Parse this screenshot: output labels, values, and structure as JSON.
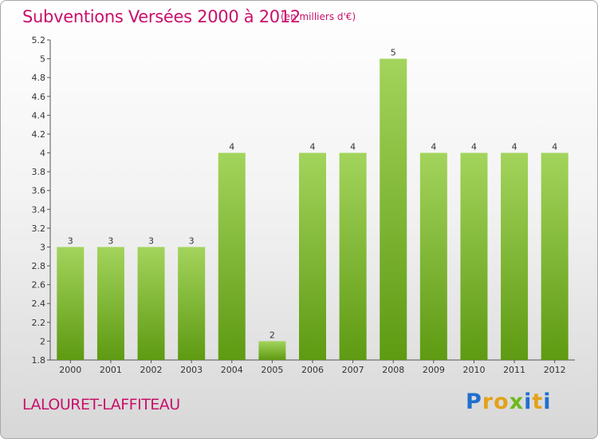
{
  "title": "Subventions Versées 2000 à 2012",
  "unit_note": "(en milliers d'€)",
  "place_name": "LALOURET-LAFFITEAU",
  "logo": {
    "text": "Proxiti",
    "letters": [
      "P",
      "r",
      "o",
      "x",
      "i",
      "t",
      "i"
    ],
    "colors": [
      "#1f6fd0",
      "#e3a21a",
      "#e3a21a",
      "#6fb81e",
      "#1f6fd0",
      "#e3a21a",
      "#1f6fd0"
    ]
  },
  "colors": {
    "accent": "#c8106b",
    "bar_top": "#a3d45c",
    "bar_bottom": "#5e9a12"
  },
  "chart_data": {
    "type": "bar",
    "categories": [
      "2000",
      "2001",
      "2002",
      "2003",
      "2004",
      "2005",
      "2006",
      "2007",
      "2008",
      "2009",
      "2010",
      "2011",
      "2012"
    ],
    "values": [
      3,
      3,
      3,
      3,
      4,
      2,
      4,
      4,
      5,
      4,
      4,
      4,
      4
    ],
    "data_labels": [
      "3",
      "3",
      "3",
      "3",
      "4",
      "2",
      "4",
      "4",
      "5",
      "4",
      "4",
      "4",
      "4"
    ],
    "ylim": [
      1.8,
      5.2
    ],
    "yticks": [
      1.8,
      2,
      2.2,
      2.4,
      2.6,
      2.8,
      3,
      3.2,
      3.4,
      3.6,
      3.8,
      4,
      4.2,
      4.4,
      4.6,
      4.8,
      5,
      5.2
    ],
    "ytick_labels": [
      "1.8",
      "2",
      "2.2",
      "2.4",
      "2.6",
      "2.8",
      "3",
      "3.2",
      "3.4",
      "3.6",
      "3.8",
      "4",
      "4.2",
      "4.4",
      "4.6",
      "4.8",
      "5",
      "5.2"
    ],
    "grid": false,
    "legend": "none"
  }
}
